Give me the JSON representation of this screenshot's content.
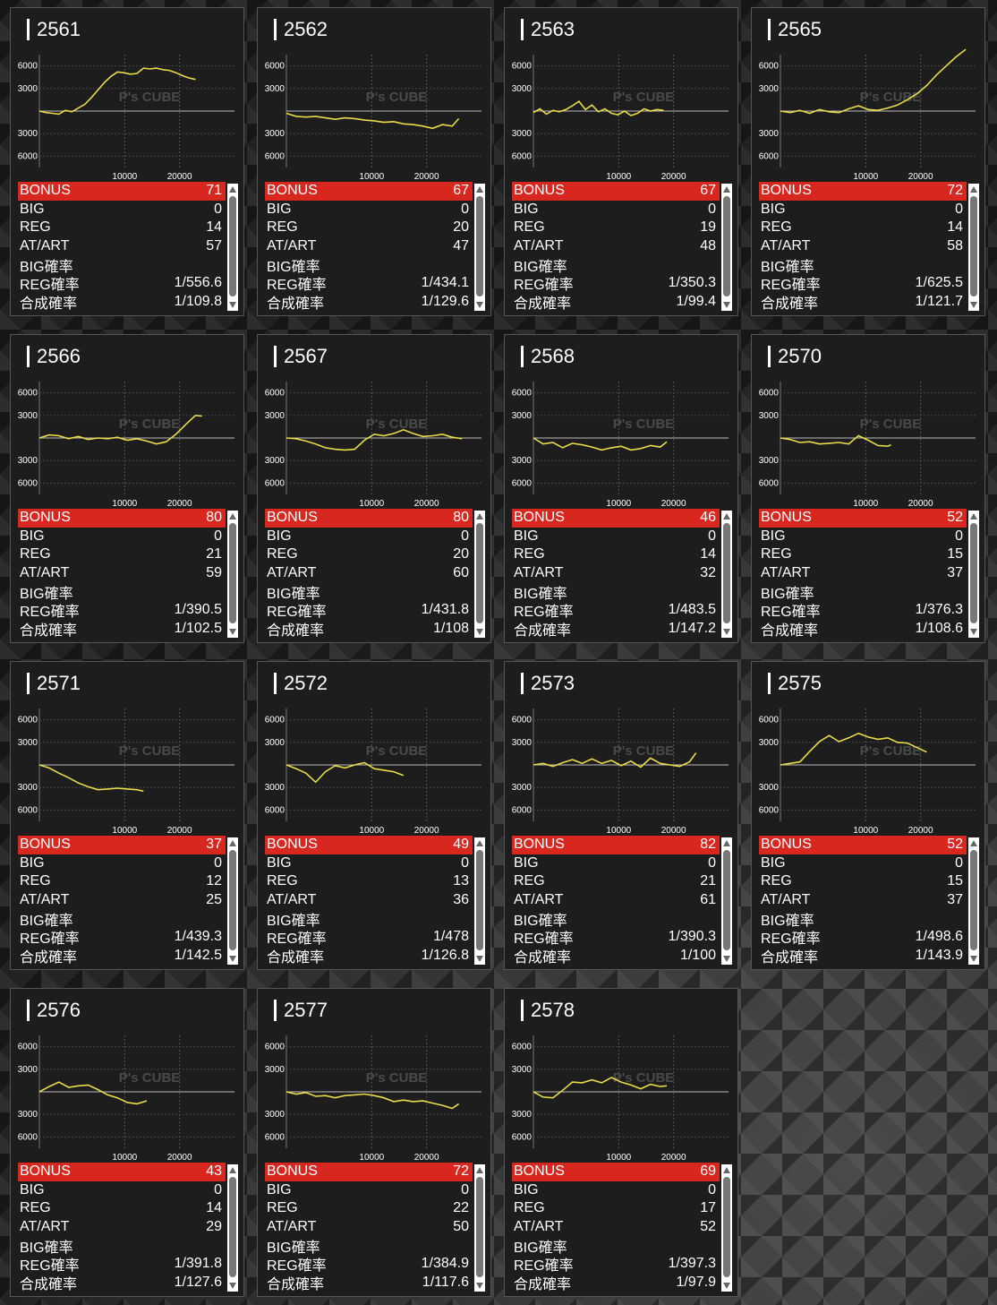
{
  "labels": {
    "bonus": "BONUS",
    "big": "BIG",
    "reg": "REG",
    "at": "AT/ART",
    "big_rate": "BIG確率",
    "reg_rate": "REG確率",
    "total_rate": "合成確率"
  },
  "watermark": "P's CUBE",
  "machines": [
    {
      "id": "2561",
      "bonus": "71",
      "big": "0",
      "reg": "14",
      "at": "57",
      "big_rate": "",
      "reg_rate": "1/556.6",
      "total_rate": "1/109.8"
    },
    {
      "id": "2562",
      "bonus": "67",
      "big": "0",
      "reg": "20",
      "at": "47",
      "big_rate": "",
      "reg_rate": "1/434.1",
      "total_rate": "1/129.6"
    },
    {
      "id": "2563",
      "bonus": "67",
      "big": "0",
      "reg": "19",
      "at": "48",
      "big_rate": "",
      "reg_rate": "1/350.3",
      "total_rate": "1/99.4"
    },
    {
      "id": "2565",
      "bonus": "72",
      "big": "0",
      "reg": "14",
      "at": "58",
      "big_rate": "",
      "reg_rate": "1/625.5",
      "total_rate": "1/121.7"
    },
    {
      "id": "2566",
      "bonus": "80",
      "big": "0",
      "reg": "21",
      "at": "59",
      "big_rate": "",
      "reg_rate": "1/390.5",
      "total_rate": "1/102.5"
    },
    {
      "id": "2567",
      "bonus": "80",
      "big": "0",
      "reg": "20",
      "at": "60",
      "big_rate": "",
      "reg_rate": "1/431.8",
      "total_rate": "1/108"
    },
    {
      "id": "2568",
      "bonus": "46",
      "big": "0",
      "reg": "14",
      "at": "32",
      "big_rate": "",
      "reg_rate": "1/483.5",
      "total_rate": "1/147.2"
    },
    {
      "id": "2570",
      "bonus": "52",
      "big": "0",
      "reg": "15",
      "at": "37",
      "big_rate": "",
      "reg_rate": "1/376.3",
      "total_rate": "1/108.6"
    },
    {
      "id": "2571",
      "bonus": "37",
      "big": "0",
      "reg": "12",
      "at": "25",
      "big_rate": "",
      "reg_rate": "1/439.3",
      "total_rate": "1/142.5"
    },
    {
      "id": "2572",
      "bonus": "49",
      "big": "0",
      "reg": "13",
      "at": "36",
      "big_rate": "",
      "reg_rate": "1/478",
      "total_rate": "1/126.8"
    },
    {
      "id": "2573",
      "bonus": "82",
      "big": "0",
      "reg": "21",
      "at": "61",
      "big_rate": "",
      "reg_rate": "1/390.3",
      "total_rate": "1/100"
    },
    {
      "id": "2575",
      "bonus": "52",
      "big": "0",
      "reg": "15",
      "at": "37",
      "big_rate": "",
      "reg_rate": "1/498.6",
      "total_rate": "1/143.9"
    },
    {
      "id": "2576",
      "bonus": "43",
      "big": "0",
      "reg": "14",
      "at": "29",
      "big_rate": "",
      "reg_rate": "1/391.8",
      "total_rate": "1/127.6"
    },
    {
      "id": "2577",
      "bonus": "72",
      "big": "0",
      "reg": "22",
      "at": "50",
      "big_rate": "",
      "reg_rate": "1/384.9",
      "total_rate": "1/117.6"
    },
    {
      "id": "2578",
      "bonus": "69",
      "big": "0",
      "reg": "17",
      "at": "52",
      "big_rate": "",
      "reg_rate": "1/397.3",
      "total_rate": "1/97.9"
    }
  ],
  "chart_data": [
    {
      "type": "line",
      "title": "2561",
      "xlim": [
        0,
        30000
      ],
      "ylim": [
        -7500,
        7500
      ],
      "yticks": [
        6000,
        3000,
        -3000,
        -6000
      ],
      "xticks": [
        10000,
        20000
      ],
      "line_color": "#e8dc48",
      "x": [
        0,
        1000,
        2000,
        3000,
        4000,
        5000,
        6000,
        7000,
        8000,
        9000,
        10000,
        11000,
        12000,
        13000,
        14000,
        15000,
        16000,
        17000,
        18000,
        19000,
        20000,
        21000,
        22000,
        23000,
        24000
      ],
      "y": [
        0,
        -200,
        -300,
        -400,
        100,
        -100,
        400,
        900,
        1800,
        2800,
        3800,
        4600,
        5200,
        5100,
        4900,
        5000,
        5700,
        5600,
        5700,
        5500,
        5400,
        5100,
        4700,
        4400,
        4200
      ]
    },
    {
      "type": "line",
      "title": "2562",
      "xlim": [
        0,
        30000
      ],
      "ylim": [
        -7500,
        7500
      ],
      "yticks": [
        6000,
        3000,
        -3000,
        -6000
      ],
      "xticks": [
        10000,
        20000
      ],
      "line_color": "#e8dc48",
      "x": [
        0,
        1500,
        3000,
        4500,
        6000,
        7500,
        9000,
        10500,
        12000,
        13500,
        15000,
        16500,
        18000,
        19500,
        21000,
        22500,
        24000,
        25500,
        26500
      ],
      "y": [
        -300,
        -700,
        -800,
        -700,
        -900,
        -1100,
        -900,
        -1000,
        -1200,
        -1300,
        -1500,
        -1400,
        -1700,
        -1800,
        -2000,
        -2300,
        -1800,
        -2000,
        -1000
      ]
    },
    {
      "type": "line",
      "title": "2563",
      "xlim": [
        0,
        30000
      ],
      "ylim": [
        -7500,
        7500
      ],
      "yticks": [
        6000,
        3000,
        -3000,
        -6000
      ],
      "xticks": [
        10000,
        20000
      ],
      "line_color": "#e8dc48",
      "x": [
        0,
        1000,
        2000,
        3000,
        4000,
        5000,
        6000,
        7000,
        8000,
        9000,
        10000,
        11000,
        12000,
        13000,
        14000,
        15000,
        16000,
        17000,
        18000,
        19000,
        20000
      ],
      "y": [
        -200,
        300,
        -400,
        100,
        -100,
        200,
        700,
        1300,
        200,
        800,
        -100,
        300,
        -300,
        -500,
        0,
        -600,
        -300,
        300,
        0,
        200,
        100
      ]
    },
    {
      "type": "line",
      "title": "2565",
      "xlim": [
        0,
        30000
      ],
      "ylim": [
        -7500,
        7500
      ],
      "yticks": [
        6000,
        3000,
        -3000,
        -6000
      ],
      "xticks": [
        10000,
        20000
      ],
      "line_color": "#e8dc48",
      "x": [
        0,
        1500,
        3000,
        4500,
        6000,
        7500,
        9000,
        10500,
        12000,
        13500,
        15000,
        16500,
        18000,
        19500,
        21000,
        22500,
        24000,
        25500,
        27000,
        28500
      ],
      "y": [
        0,
        -200,
        100,
        -300,
        200,
        -100,
        -200,
        300,
        700,
        200,
        100,
        400,
        800,
        1500,
        2300,
        3400,
        4800,
        6000,
        7200,
        8200
      ]
    },
    {
      "type": "line",
      "title": "2566",
      "xlim": [
        0,
        30000
      ],
      "ylim": [
        -7500,
        7500
      ],
      "yticks": [
        6000,
        3000,
        -3000,
        -6000
      ],
      "xticks": [
        10000,
        20000
      ],
      "line_color": "#e8dc48",
      "x": [
        0,
        1500,
        3000,
        4500,
        6000,
        7500,
        9000,
        10500,
        12000,
        13500,
        15000,
        16500,
        18000,
        19500,
        21000,
        22500,
        24000,
        25000
      ],
      "y": [
        0,
        400,
        300,
        -100,
        200,
        -200,
        0,
        -100,
        100,
        -300,
        -100,
        -400,
        -800,
        -500,
        500,
        1800,
        3000,
        2900
      ]
    },
    {
      "type": "line",
      "title": "2567",
      "xlim": [
        0,
        30000
      ],
      "ylim": [
        -7500,
        7500
      ],
      "yticks": [
        6000,
        3000,
        -3000,
        -6000
      ],
      "xticks": [
        10000,
        20000
      ],
      "line_color": "#e8dc48",
      "x": [
        0,
        1500,
        3000,
        4500,
        6000,
        7500,
        9000,
        10500,
        12000,
        13500,
        15000,
        16500,
        18000,
        19500,
        21000,
        22500,
        24000,
        25500,
        27000
      ],
      "y": [
        0,
        -100,
        -400,
        -800,
        -1300,
        -1500,
        -1600,
        -1500,
        -300,
        500,
        300,
        600,
        1100,
        600,
        200,
        300,
        500,
        100,
        -100
      ]
    },
    {
      "type": "line",
      "title": "2568",
      "xlim": [
        0,
        30000
      ],
      "ylim": [
        -7500,
        7500
      ],
      "yticks": [
        6000,
        3000,
        -3000,
        -6000
      ],
      "xticks": [
        10000,
        20000
      ],
      "line_color": "#e8dc48",
      "x": [
        0,
        1500,
        3000,
        4500,
        6000,
        7500,
        9000,
        10500,
        12000,
        13500,
        15000,
        16500,
        18000,
        19500,
        20500
      ],
      "y": [
        0,
        -800,
        -600,
        -1300,
        -700,
        -900,
        -1200,
        -1600,
        -1300,
        -1100,
        -1600,
        -1400,
        -1000,
        -1200,
        -500
      ]
    },
    {
      "type": "line",
      "title": "2570",
      "xlim": [
        0,
        30000
      ],
      "ylim": [
        -7500,
        7500
      ],
      "yticks": [
        6000,
        3000,
        -3000,
        -6000
      ],
      "xticks": [
        10000,
        20000
      ],
      "line_color": "#e8dc48",
      "x": [
        0,
        1500,
        3000,
        4500,
        6000,
        7500,
        9000,
        10500,
        12000,
        13500,
        15000,
        16500,
        17000
      ],
      "y": [
        0,
        -200,
        -600,
        -500,
        -800,
        -700,
        -600,
        -800,
        300,
        -300,
        -1000,
        -1100,
        -900
      ]
    },
    {
      "type": "line",
      "title": "2571",
      "xlim": [
        0,
        30000
      ],
      "ylim": [
        -7500,
        7500
      ],
      "yticks": [
        6000,
        3000,
        -3000,
        -6000
      ],
      "xticks": [
        10000,
        20000
      ],
      "line_color": "#e8dc48",
      "x": [
        0,
        1500,
        3000,
        4500,
        6000,
        7500,
        9000,
        10500,
        12000,
        13500,
        15000,
        16000
      ],
      "y": [
        0,
        -400,
        -1100,
        -1700,
        -2400,
        -2900,
        -3300,
        -3200,
        -3100,
        -3200,
        -3300,
        -3500
      ]
    },
    {
      "type": "line",
      "title": "2572",
      "xlim": [
        0,
        30000
      ],
      "ylim": [
        -7500,
        7500
      ],
      "yticks": [
        6000,
        3000,
        -3000,
        -6000
      ],
      "xticks": [
        10000,
        20000
      ],
      "line_color": "#e8dc48",
      "x": [
        0,
        1500,
        3000,
        4500,
        6000,
        7500,
        9000,
        10500,
        12000,
        13500,
        15000,
        16500,
        18000
      ],
      "y": [
        0,
        -500,
        -1100,
        -2300,
        -900,
        -100,
        -400,
        0,
        300,
        -500,
        -700,
        -900,
        -1400
      ]
    },
    {
      "type": "line",
      "title": "2573",
      "xlim": [
        0,
        30000
      ],
      "ylim": [
        -7500,
        7500
      ],
      "yticks": [
        6000,
        3000,
        -3000,
        -6000
      ],
      "xticks": [
        10000,
        20000
      ],
      "line_color": "#e8dc48",
      "x": [
        0,
        1500,
        3000,
        4500,
        6000,
        7500,
        9000,
        10500,
        12000,
        13500,
        15000,
        16500,
        18000,
        19500,
        21000,
        22500,
        24000,
        25000
      ],
      "y": [
        0,
        200,
        -200,
        300,
        700,
        200,
        800,
        200,
        600,
        -100,
        500,
        -300,
        900,
        200,
        0,
        -200,
        400,
        1600
      ]
    },
    {
      "type": "line",
      "title": "2575",
      "xlim": [
        0,
        30000
      ],
      "ylim": [
        -7500,
        7500
      ],
      "yticks": [
        6000,
        3000,
        -3000,
        -6000
      ],
      "xticks": [
        10000,
        20000
      ],
      "line_color": "#e8dc48",
      "x": [
        0,
        1500,
        3000,
        4500,
        6000,
        7500,
        9000,
        10500,
        12000,
        13500,
        15000,
        16500,
        18000,
        19500,
        21000,
        22500
      ],
      "y": [
        0,
        200,
        400,
        1800,
        3100,
        3900,
        3100,
        3600,
        4200,
        3700,
        3400,
        3600,
        3000,
        2900,
        2300,
        1700
      ]
    },
    {
      "type": "line",
      "title": "2576",
      "xlim": [
        0,
        30000
      ],
      "ylim": [
        -7500,
        7500
      ],
      "yticks": [
        6000,
        3000,
        -3000,
        -6000
      ],
      "xticks": [
        10000,
        20000
      ],
      "line_color": "#e8dc48",
      "x": [
        0,
        1500,
        3000,
        4500,
        6000,
        7500,
        9000,
        10500,
        12000,
        13500,
        15000,
        16500
      ],
      "y": [
        0,
        700,
        1300,
        600,
        800,
        900,
        300,
        -400,
        -800,
        -1400,
        -1600,
        -1200
      ]
    },
    {
      "type": "line",
      "title": "2577",
      "xlim": [
        0,
        30000
      ],
      "ylim": [
        -7500,
        7500
      ],
      "yticks": [
        6000,
        3000,
        -3000,
        -6000
      ],
      "xticks": [
        10000,
        20000
      ],
      "line_color": "#e8dc48",
      "x": [
        0,
        1500,
        3000,
        4500,
        6000,
        7500,
        9000,
        10500,
        12000,
        13500,
        15000,
        16500,
        18000,
        19500,
        21000,
        22500,
        24000,
        25500,
        26500
      ],
      "y": [
        0,
        -300,
        -100,
        -600,
        -500,
        -800,
        -500,
        -400,
        -300,
        -500,
        -800,
        -1300,
        -1100,
        -1300,
        -1200,
        -1500,
        -1800,
        -2200,
        -1600
      ]
    },
    {
      "type": "line",
      "title": "2578",
      "xlim": [
        0,
        30000
      ],
      "ylim": [
        -7500,
        7500
      ],
      "yticks": [
        6000,
        3000,
        -3000,
        -6000
      ],
      "xticks": [
        10000,
        20000
      ],
      "line_color": "#e8dc48",
      "x": [
        0,
        1500,
        3000,
        4500,
        6000,
        7500,
        9000,
        10500,
        12000,
        13500,
        15000,
        16500,
        18000,
        19500,
        20500
      ],
      "y": [
        0,
        -700,
        -800,
        200,
        1300,
        1200,
        1600,
        1200,
        1900,
        1300,
        900,
        400,
        1000,
        700,
        800
      ]
    }
  ]
}
